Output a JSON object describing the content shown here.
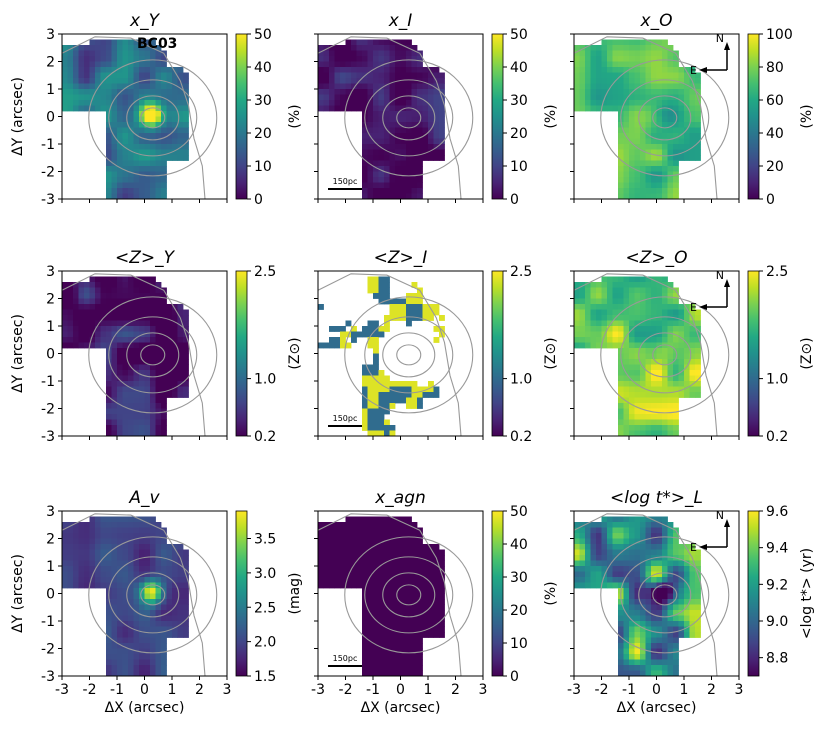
{
  "chart_data": {
    "type": "heatmap",
    "figure_label": "BC03",
    "scale_bar_label": "150pc",
    "compass": {
      "north": "N",
      "east": "E"
    },
    "x_axis": {
      "label": "ΔX (arcsec)",
      "range": [
        -3,
        3
      ],
      "ticks": [
        -3,
        -2,
        -1,
        0,
        1,
        2,
        3
      ],
      "tick_labels": [
        "-3",
        "-2",
        "-1",
        "0",
        "1",
        "2",
        "3"
      ]
    },
    "y_axis": {
      "label": "ΔY (arcsec)",
      "range": [
        -3,
        3
      ],
      "ticks": [
        3,
        2,
        1,
        0,
        -1,
        -2,
        -3
      ],
      "tick_labels": [
        "3",
        "2",
        "1",
        "0",
        "-1",
        "-2",
        "-3"
      ]
    },
    "panels": [
      {
        "title": "x_Y",
        "cbar_label": "(%)",
        "cbar_range": [
          0,
          50
        ],
        "cbar_ticks": [
          "50",
          "40",
          "30",
          "20",
          "10",
          "0"
        ],
        "cmap": "viridis",
        "show_label": true,
        "show_scale": false,
        "show_compass": false,
        "mask": "standard",
        "field": {
          "base": 0.35,
          "amp": 0.22,
          "peak": 0.85,
          "seed": 1
        }
      },
      {
        "title": "x_I",
        "cbar_label": "(%)",
        "cbar_range": [
          0,
          50
        ],
        "cbar_ticks": [
          "50",
          "40",
          "30",
          "20",
          "10",
          "0"
        ],
        "cmap": "viridis",
        "show_label": false,
        "show_scale": true,
        "show_compass": false,
        "mask": "standard",
        "field": {
          "base": 0.07,
          "amp": 0.15,
          "peak": 0.0,
          "seed": 2
        }
      },
      {
        "title": "x_O",
        "cbar_label": "(%)",
        "cbar_range": [
          0,
          100
        ],
        "cbar_ticks": [
          "100",
          "80",
          "60",
          "40",
          "20",
          "0"
        ],
        "cmap": "viridis",
        "show_label": false,
        "show_scale": false,
        "show_compass": true,
        "mask": "standard",
        "field": {
          "base": 0.68,
          "amp": 0.18,
          "peak": -0.2,
          "seed": 3
        }
      },
      {
        "title": "<Z>_Y",
        "cbar_label": "(Z⊙)",
        "cbar_range": [
          0.2,
          2.5
        ],
        "cbar_ticks": [
          "2.5",
          "1.0",
          "0.2"
        ],
        "cmap": "viridis",
        "show_label": false,
        "show_scale": false,
        "show_compass": false,
        "mask": "standard",
        "field": {
          "base": 0.05,
          "amp": 0.22,
          "peak": 0.0,
          "seed": 4
        }
      },
      {
        "title": "<Z>_I",
        "cbar_label": "(Z⊙)",
        "cbar_range": [
          0.2,
          2.5
        ],
        "cbar_ticks": [
          "2.5",
          "1.0",
          "0.2"
        ],
        "cmap": "viridis",
        "show_label": false,
        "show_scale": true,
        "show_compass": false,
        "mask": "sparse",
        "field": {
          "base": 0.55,
          "amp": 0.6,
          "peak": 0.0,
          "seed": 5
        }
      },
      {
        "title": "<Z>_O",
        "cbar_label": "(Z⊙)",
        "cbar_range": [
          0.2,
          2.5
        ],
        "cbar_ticks": [
          "2.5",
          "1.0",
          "0.2"
        ],
        "cmap": "viridis",
        "show_label": false,
        "show_scale": false,
        "show_compass": true,
        "mask": "standard",
        "field": {
          "base": 0.8,
          "amp": 0.28,
          "peak": 0.1,
          "seed": 6
        }
      },
      {
        "title": "A_v",
        "cbar_label": "(mag)",
        "cbar_range": [
          1.5,
          3.9
        ],
        "cbar_ticks": [
          "3.5",
          "3.0",
          "2.5",
          "2.0",
          "1.5"
        ],
        "cmap": "viridis",
        "show_label": false,
        "show_scale": false,
        "show_compass": false,
        "mask": "standard",
        "field": {
          "base": 0.18,
          "amp": 0.12,
          "peak": 0.85,
          "seed": 7
        }
      },
      {
        "title": "x_agn",
        "cbar_label": "(%)",
        "cbar_range": [
          0,
          50
        ],
        "cbar_ticks": [
          "50",
          "40",
          "30",
          "20",
          "10",
          "0"
        ],
        "cmap": "viridis",
        "show_label": false,
        "show_scale": true,
        "show_compass": false,
        "mask": "standard",
        "field": {
          "base": 0.0,
          "amp": 0.0,
          "peak": 0.0,
          "seed": 8
        }
      },
      {
        "title": "<log t*>_L",
        "cbar_label": "<log t*> (yr)",
        "cbar_range": [
          8.7,
          9.6
        ],
        "cbar_ticks": [
          "9.6",
          "9.4",
          "9.2",
          "9.0",
          "8.8"
        ],
        "cmap": "viridis",
        "show_label": false,
        "show_scale": false,
        "show_compass": true,
        "mask": "standard",
        "field": {
          "base": 0.55,
          "amp": 0.45,
          "peak": -0.6,
          "seed": 9
        }
      }
    ]
  }
}
